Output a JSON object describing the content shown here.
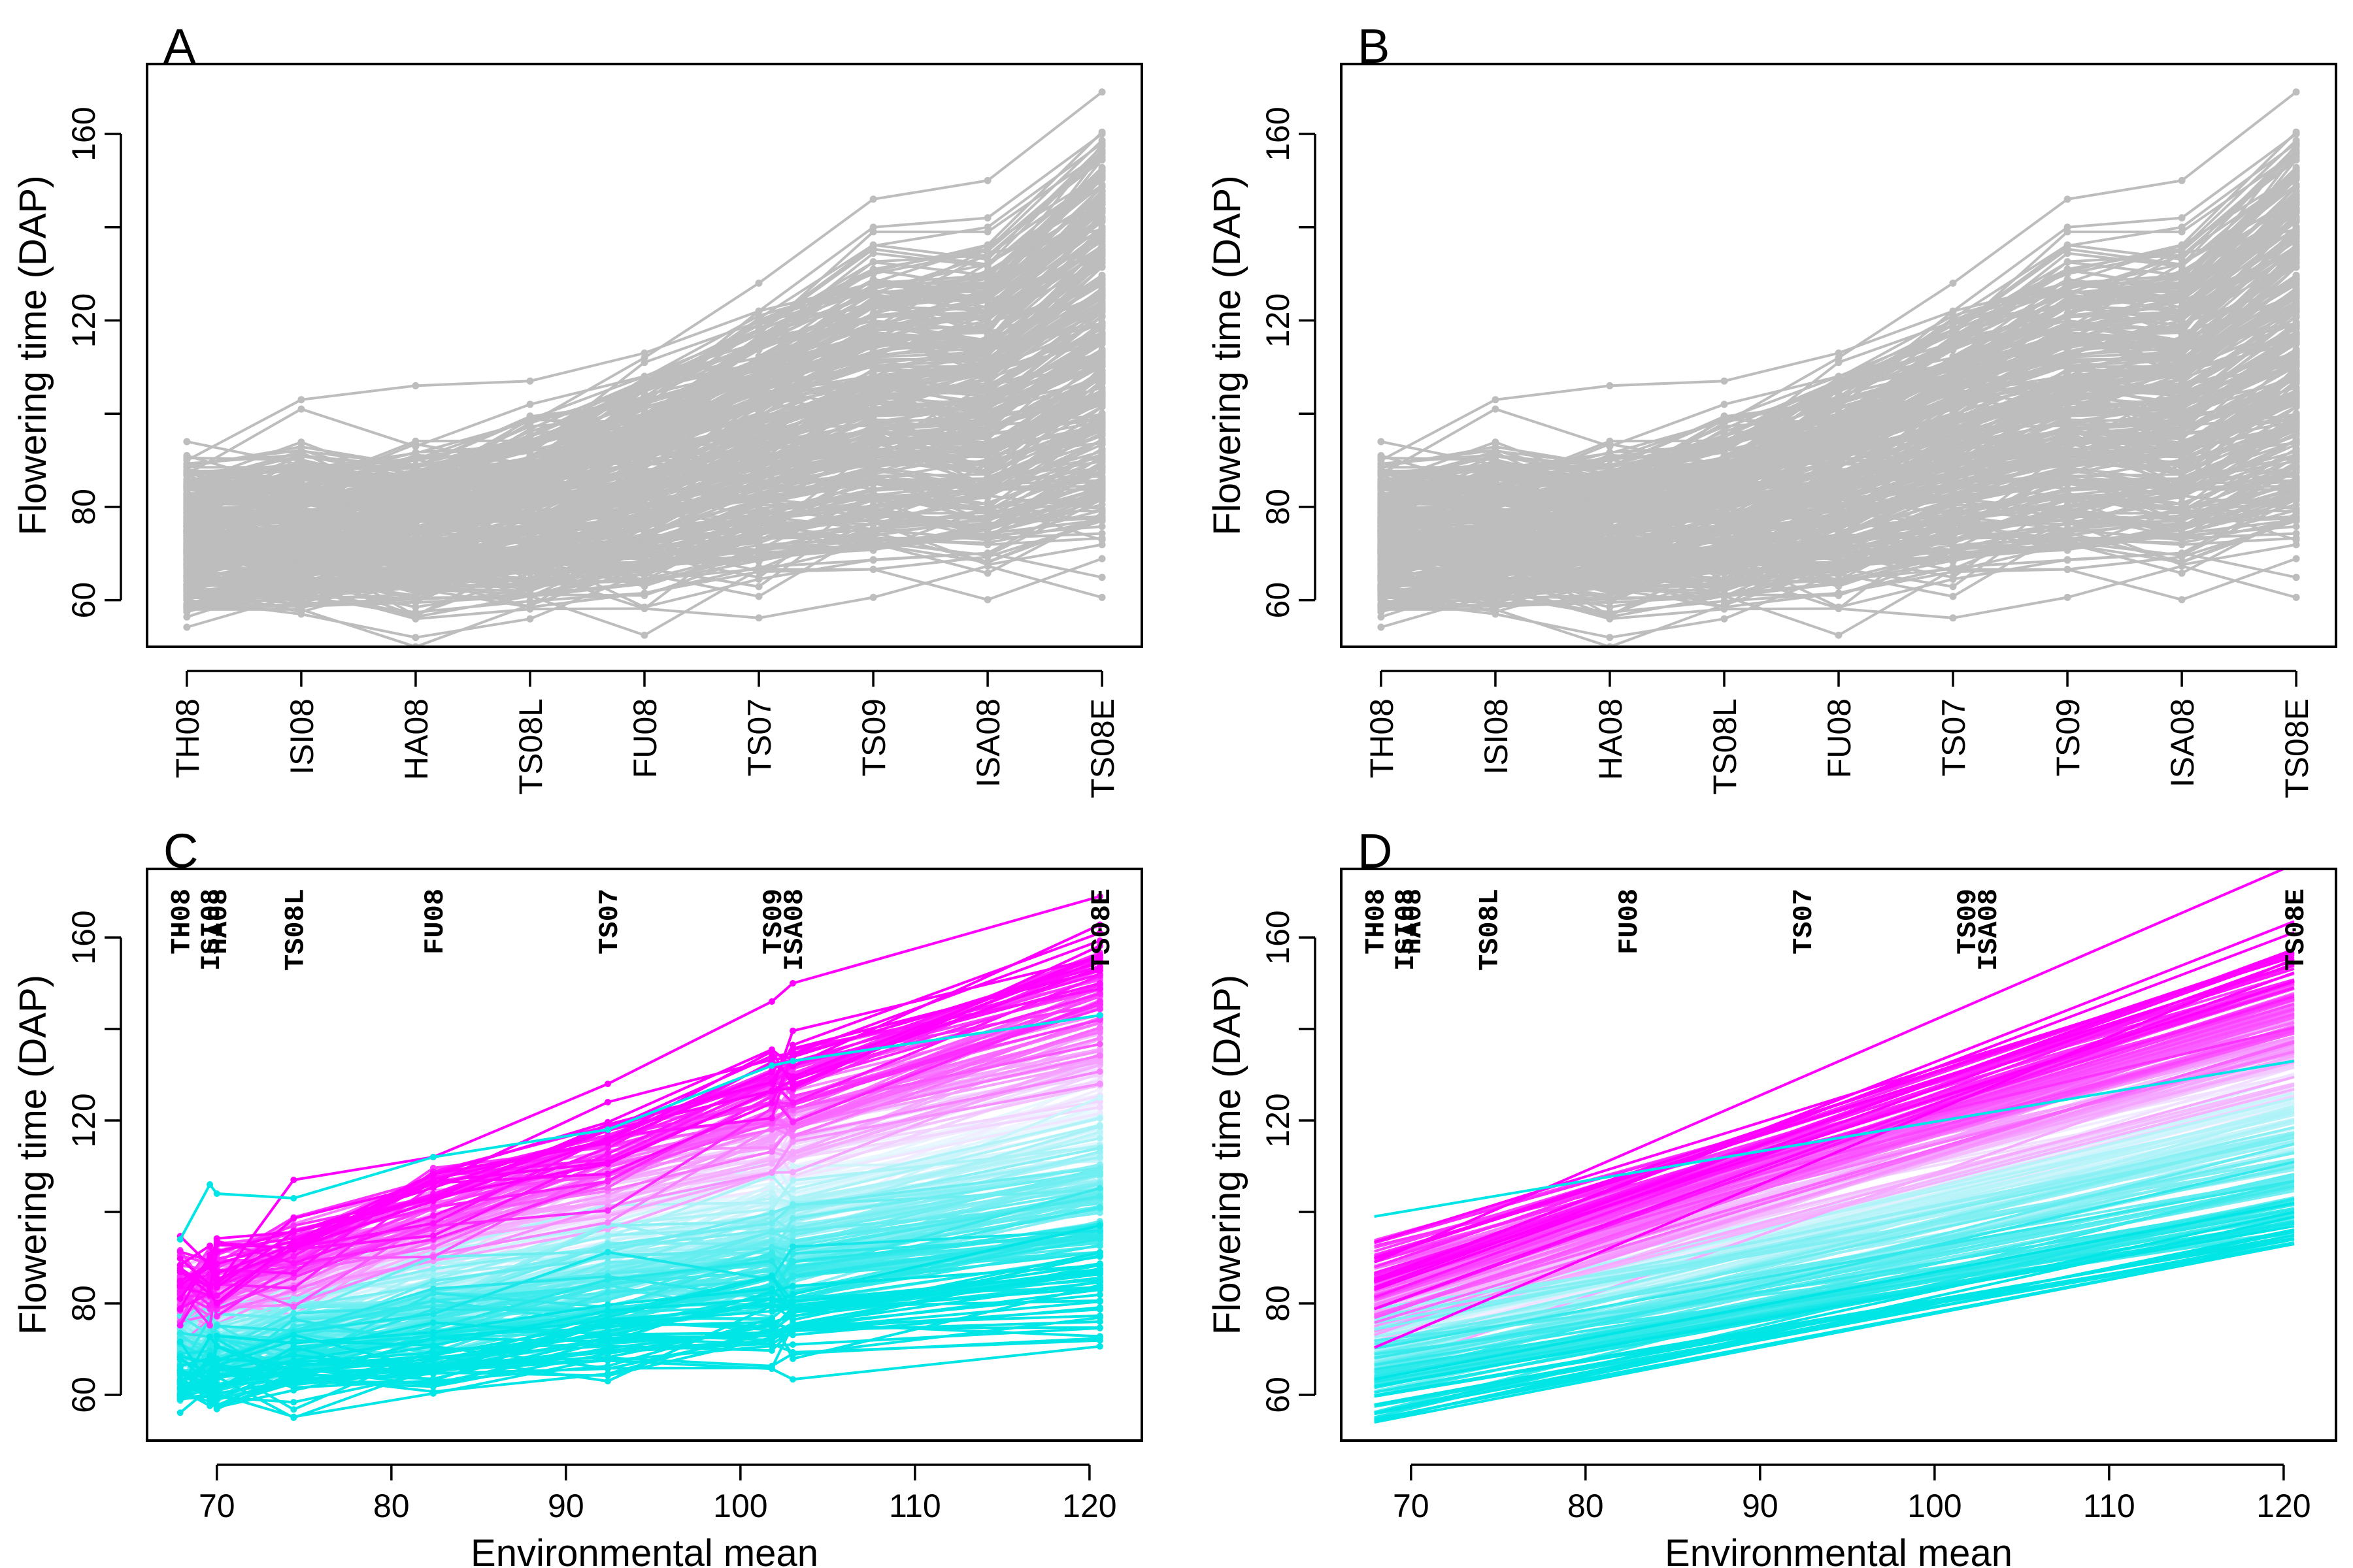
{
  "chart_data": [
    {
      "panel": "A",
      "type": "line",
      "ylabel": "Flowering time (DAP)",
      "xlabel": "",
      "categories": [
        "TH08",
        "ISI08",
        "HA08",
        "TS08L",
        "FU08",
        "TS07",
        "TS09",
        "ISA08",
        "TS08E"
      ],
      "yticks": [
        60,
        80,
        120,
        160
      ],
      "ylim": [
        50,
        175
      ],
      "line_color": "#bdbdbd",
      "series_count": 300,
      "env_mean_range": [
        58,
        98
      ],
      "extreme_lines": [
        [
          94,
          89,
          84,
          98,
          112,
          128,
          146,
          150,
          169
        ],
        [
          90,
          103,
          106,
          107,
          113,
          122,
          140,
          142,
          160
        ],
        [
          87,
          101,
          93,
          102,
          108,
          118,
          136,
          140,
          158
        ],
        [
          84,
          92,
          89,
          95,
          106,
          117,
          139,
          139,
          156
        ],
        [
          60,
          57,
          52,
          56,
          66,
          73,
          80,
          82,
          97
        ],
        [
          58,
          58,
          50,
          59,
          67,
          75,
          79,
          83,
          98
        ]
      ]
    },
    {
      "panel": "B",
      "type": "line",
      "ylabel": "Flowering time (DAP)",
      "xlabel": "",
      "categories": [
        "TH08",
        "ISI08",
        "HA08",
        "TS08L",
        "FU08",
        "TS07",
        "TS09",
        "ISA08",
        "TS08E"
      ],
      "yticks": [
        60,
        80,
        120,
        160
      ],
      "ylim": [
        50,
        175
      ],
      "line_color": "#bdbdbd",
      "series_count": 300,
      "env_mean_range": [
        58,
        98
      ],
      "extreme_lines": [
        [
          94,
          89,
          84,
          98,
          112,
          128,
          146,
          150,
          169
        ],
        [
          90,
          103,
          106,
          107,
          113,
          122,
          140,
          142,
          160
        ],
        [
          87,
          101,
          93,
          102,
          108,
          118,
          136,
          140,
          158
        ],
        [
          84,
          92,
          89,
          95,
          106,
          117,
          139,
          139,
          156
        ],
        [
          60,
          57,
          52,
          56,
          66,
          73,
          80,
          82,
          97
        ],
        [
          58,
          58,
          50,
          59,
          67,
          75,
          79,
          83,
          98
        ]
      ]
    },
    {
      "panel": "C",
      "type": "line",
      "xlabel": "Environmental mean",
      "ylabel": "Flowering time (DAP)",
      "xlim": [
        66,
        123
      ],
      "ylim": [
        50,
        175
      ],
      "xticks": [
        70,
        80,
        90,
        100,
        110,
        120
      ],
      "yticks": [
        60,
        80,
        120,
        160
      ],
      "environments": [
        {
          "name": "TH08",
          "mean": 67.9
        },
        {
          "name": "ISI08",
          "mean": 69.6
        },
        {
          "name": "HA08",
          "mean": 70.0
        },
        {
          "name": "TS08L",
          "mean": 74.4
        },
        {
          "name": "FU08",
          "mean": 82.4
        },
        {
          "name": "TS07",
          "mean": 92.4
        },
        {
          "name": "TS09",
          "mean": 101.8
        },
        {
          "name": "ISA08",
          "mean": 103.0
        },
        {
          "name": "TS08E",
          "mean": 120.6
        }
      ],
      "colors": {
        "low": "#00e5e5",
        "mid": "#f0f8ff",
        "high": "#ff00ff"
      },
      "series_count": 250,
      "extreme_lines": [
        [
          84,
          88,
          84,
          107,
          112,
          128,
          146,
          150,
          169
        ],
        [
          94,
          106,
          104,
          103,
          112,
          118,
          132,
          133,
          143
        ],
        [
          59,
          60,
          64,
          55,
          66,
          74,
          80,
          82,
          97
        ]
      ]
    },
    {
      "panel": "D",
      "type": "line",
      "xlabel": "Environmental mean",
      "ylabel": "Flowering time (DAP)",
      "xlim": [
        66,
        123
      ],
      "ylim": [
        50,
        175
      ],
      "xticks": [
        70,
        80,
        90,
        100,
        110,
        120
      ],
      "yticks": [
        60,
        80,
        120,
        160
      ],
      "environments": [
        {
          "name": "TH08",
          "mean": 67.9
        },
        {
          "name": "ISI08",
          "mean": 69.6
        },
        {
          "name": "HA08",
          "mean": 70.0
        },
        {
          "name": "TS08L",
          "mean": 74.4
        },
        {
          "name": "FU08",
          "mean": 82.4
        },
        {
          "name": "TS07",
          "mean": 92.4
        },
        {
          "name": "TS09",
          "mean": 101.8
        },
        {
          "name": "ISA08",
          "mean": 103.0
        },
        {
          "name": "TS08E",
          "mean": 120.6
        }
      ],
      "colors": {
        "low": "#00e5e5",
        "mid": "#f0f8ff",
        "high": "#ff00ff"
      },
      "series_count": 250,
      "fit_range": {
        "start_y": [
          54,
          99
        ],
        "end_y": [
          93,
          176
        ]
      }
    }
  ]
}
